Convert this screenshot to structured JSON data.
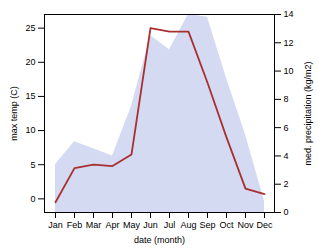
{
  "chart_data": {
    "type": "line",
    "categories": [
      "Jan",
      "Feb",
      "Mar",
      "Apr",
      "May",
      "Jun",
      "Jul",
      "Aug",
      "Sep",
      "Oct",
      "Nov",
      "Dec"
    ],
    "series": [
      {
        "type": "area",
        "axis": "y2",
        "color": "#b0bce8",
        "values": [
          3.4,
          5.0,
          4.5,
          4.0,
          7.5,
          12.5,
          11.5,
          14.0,
          13.8,
          9.5,
          5.5,
          0.8
        ]
      },
      {
        "type": "line",
        "color": "#a83030",
        "values": [
          -0.5,
          4.5,
          5.0,
          4.8,
          6.5,
          25.0,
          24.5,
          24.5,
          17.0,
          9.0,
          1.5,
          0.7
        ]
      }
    ],
    "xlabel": "date (month)",
    "ylabel": "max temp (C)",
    "y2label": "med. precipitation (kg/m2)",
    "ylim": [
      -2,
      27
    ],
    "yticks": [
      0,
      5,
      10,
      15,
      20,
      25
    ],
    "y2lim": [
      0,
      14
    ],
    "y2ticks": [
      0,
      2,
      4,
      6,
      8,
      10,
      12,
      14
    ]
  }
}
